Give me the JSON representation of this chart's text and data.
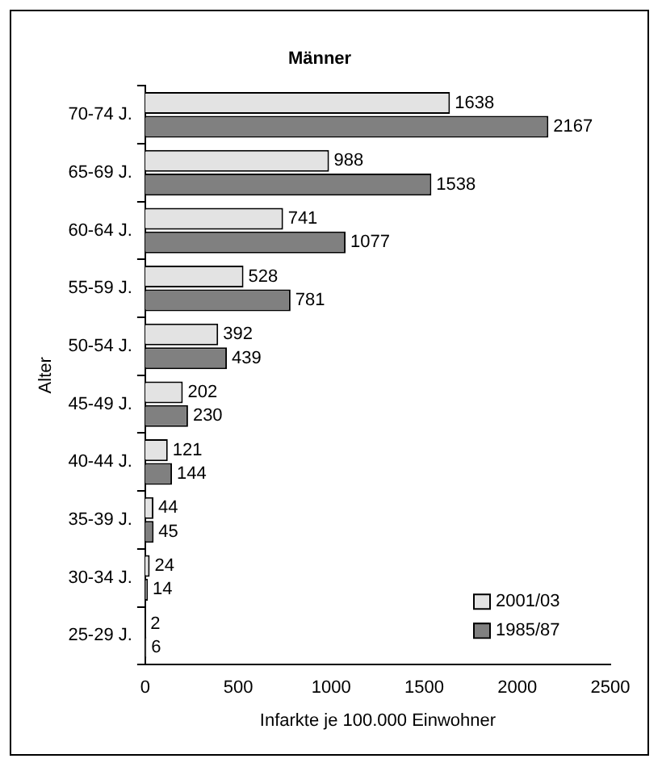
{
  "chart_data": {
    "type": "bar",
    "orientation": "horizontal",
    "title": "Männer",
    "xlabel": "Infarkte je 100.000 Einwohner",
    "ylabel": "Alter",
    "categories": [
      "70-74 J.",
      "65-69 J.",
      "60-64 J.",
      "55-59 J.",
      "50-54 J.",
      "45-49 J.",
      "40-44 J.",
      "35-39 J.",
      "30-34 J.",
      "25-29 J."
    ],
    "series": [
      {
        "name": "2001/03",
        "color": "#e3e3e3",
        "values": [
          1638,
          988,
          741,
          528,
          392,
          202,
          121,
          44,
          24,
          2
        ]
      },
      {
        "name": "1985/87",
        "color": "#808080",
        "values": [
          2167,
          1538,
          1077,
          781,
          439,
          230,
          144,
          45,
          14,
          6
        ]
      }
    ],
    "xlim": [
      0,
      2500
    ],
    "xticks": [
      0,
      500,
      1000,
      1500,
      2000,
      2500
    ],
    "grid": false,
    "legend": "bottom right",
    "data_labels": true
  }
}
